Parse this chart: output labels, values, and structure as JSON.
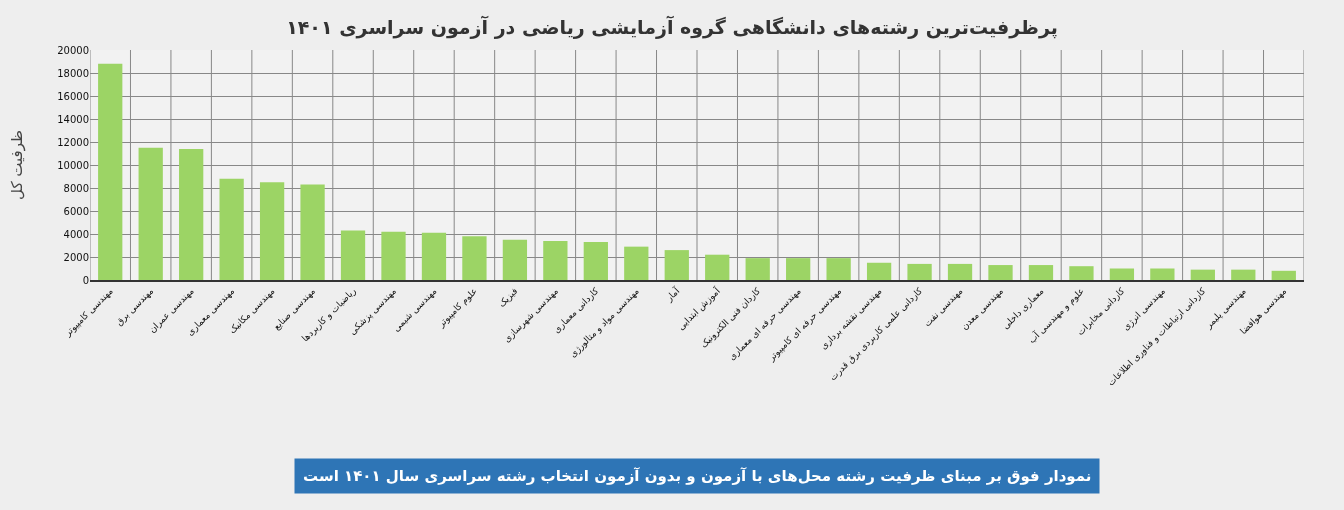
{
  "chart_data": {
    "type": "bar",
    "title": "پرظرفیت‌ترین رشته‌های دانشگاهی گروه آزمایشی ریاضی در آزمون سراسری ۱۴۰۱",
    "ylabel": "ظرفیت کل",
    "categories": [
      "مهندسی کامپیوتر",
      "مهندسی برق",
      "مهندسی عمران",
      "مهندسی معماری",
      "مهندسی مکانیک",
      "مهندسی صنایع",
      "ریاضیات و کاربردها",
      "مهندسی پزشکی",
      "مهندسی شیمی",
      "علوم کامپیوتر",
      "فیزیک",
      "مهندسی شهرسازی",
      "کاردانی معماری",
      "مهندسی مواد و متالورژی",
      "آمار",
      "آموزش ابتدایی",
      "کاردان فنی الکترونیک",
      "مهندسی حرفه ای معماری",
      "مهندسی حرفه ای کامپیوتر",
      "مهندسی نقشه برداری",
      "کاردانی علمی کاربردی برق قدرت",
      "مهندسی نفت",
      "مهندسی معدن",
      "معماری داخلی",
      "علوم و مهندسی آب",
      "کاردانی مخابرات",
      "مهندسی انرژی",
      "کاردانی ارتباطات و فناوری اطلاعات",
      "مهندسی پلیمر",
      "مهندسی هوافضا"
    ],
    "values": [
      18800,
      11500,
      11400,
      8800,
      8500,
      8300,
      4300,
      4200,
      4100,
      3800,
      3500,
      3400,
      3300,
      2900,
      2600,
      2200,
      1900,
      1900,
      1900,
      1500,
      1400,
      1400,
      1300,
      1300,
      1200,
      1000,
      1000,
      900,
      900,
      800
    ],
    "color": "#9cd465",
    "ylim": [
      0,
      20000
    ],
    "yticks": [
      0,
      2000,
      4000,
      6000,
      8000,
      10000,
      12000,
      14000,
      16000,
      18000,
      20000
    ],
    "grid": true,
    "annotations": [
      "نمودار فوق بر مبنای ظرفیت رشته محل‌های با آزمون و بدون آزمون انتخاب رشته سراسری سال ۱۴۰۱ است"
    ]
  }
}
